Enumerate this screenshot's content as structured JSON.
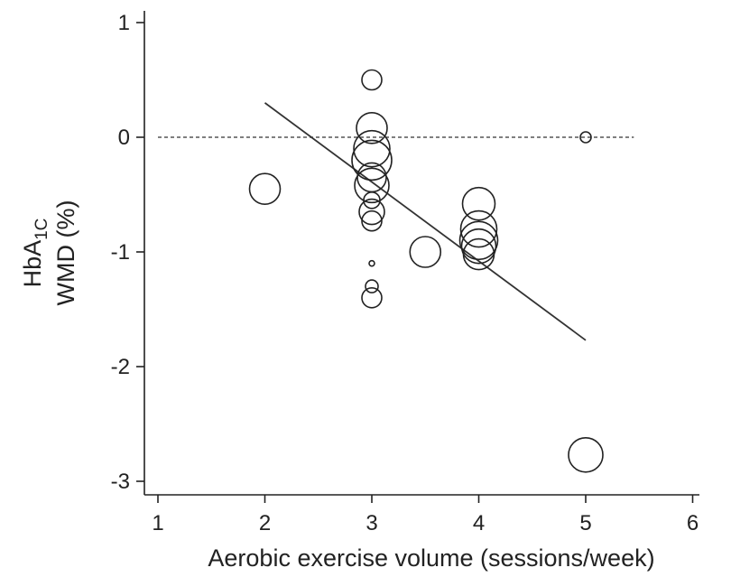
{
  "chart_data": {
    "type": "scatter",
    "xlabel": "Aerobic exercise volume (sessions/week)",
    "ylabel_main": "HbA",
    "ylabel_sub": "1C",
    "ylabel_line2": "WMD (%)",
    "xlim": [
      1,
      6
    ],
    "ylim": [
      -3,
      1
    ],
    "xticks": [
      1,
      2,
      3,
      4,
      5,
      6
    ],
    "yticks": [
      1,
      0,
      -1,
      -2,
      -3
    ],
    "xtick_labels": [
      "1",
      "2",
      "3",
      "4",
      "5",
      "6"
    ],
    "ytick_labels": [
      "1",
      "0",
      "-1",
      "-2",
      "-3"
    ],
    "reference_line": {
      "y": 0,
      "x_range": [
        1,
        5.45
      ],
      "style": "dashed"
    },
    "fit_line": {
      "x": [
        2,
        5
      ],
      "y": [
        0.3,
        -1.77
      ]
    },
    "grid": false,
    "legend": "none",
    "points": [
      {
        "x": 2,
        "y": -0.45,
        "size": 17
      },
      {
        "x": 3,
        "y": 0.5,
        "size": 11
      },
      {
        "x": 3,
        "y": 0.08,
        "size": 17
      },
      {
        "x": 3,
        "y": -0.1,
        "size": 20
      },
      {
        "x": 3,
        "y": -0.2,
        "size": 22
      },
      {
        "x": 3,
        "y": -0.35,
        "size": 16
      },
      {
        "x": 3,
        "y": -0.42,
        "size": 19
      },
      {
        "x": 3,
        "y": -0.55,
        "size": 9
      },
      {
        "x": 3,
        "y": -0.65,
        "size": 14
      },
      {
        "x": 3,
        "y": -0.73,
        "size": 11
      },
      {
        "x": 3,
        "y": -1.1,
        "size": 3
      },
      {
        "x": 3,
        "y": -1.3,
        "size": 7
      },
      {
        "x": 3,
        "y": -1.4,
        "size": 11
      },
      {
        "x": 3.5,
        "y": -1.0,
        "size": 17
      },
      {
        "x": 4,
        "y": -0.58,
        "size": 18
      },
      {
        "x": 4,
        "y": -0.8,
        "size": 20
      },
      {
        "x": 4,
        "y": -0.9,
        "size": 21
      },
      {
        "x": 4,
        "y": -0.95,
        "size": 19
      },
      {
        "x": 4,
        "y": -1.02,
        "size": 17
      },
      {
        "x": 5,
        "y": 0.0,
        "size": 6
      },
      {
        "x": 5,
        "y": -2.77,
        "size": 19
      }
    ]
  }
}
